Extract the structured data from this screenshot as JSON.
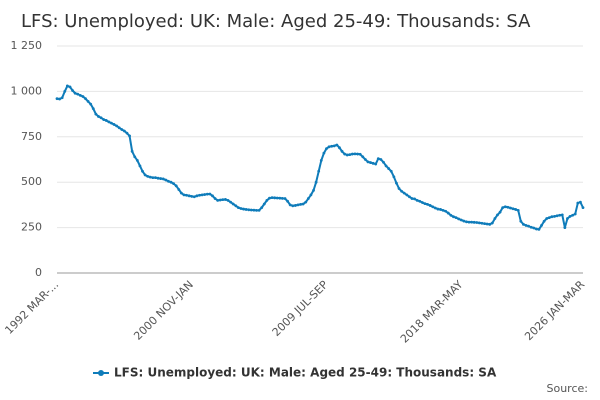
{
  "chart_data": {
    "type": "line",
    "title": "LFS: Unemployed: UK: Male: Aged 25-49: Thousands: SA",
    "categories": [
      "1992 MAR-...",
      null,
      null,
      null,
      null,
      null,
      null,
      null,
      null,
      null,
      null,
      null,
      null,
      null,
      null,
      null,
      null,
      null,
      null,
      null,
      null,
      null,
      null,
      null,
      null,
      null,
      null,
      null,
      null,
      null,
      null,
      null,
      null,
      null,
      null,
      null,
      null,
      null,
      null,
      null,
      null,
      null,
      null,
      null,
      null,
      null,
      null,
      null,
      null,
      null,
      null,
      null,
      "2000 NOV-JAN",
      null,
      null,
      null,
      null,
      null,
      null,
      null,
      null,
      null,
      null,
      null,
      null,
      null,
      null,
      null,
      null,
      null,
      null,
      null,
      null,
      null,
      null,
      null,
      null,
      null,
      null,
      null,
      null,
      null,
      null,
      null,
      null,
      null,
      null,
      null,
      null,
      null,
      null,
      null,
      null,
      null,
      null,
      null,
      null,
      null,
      null,
      null,
      null,
      null,
      null,
      null,
      "2009 JUL-SEP",
      null,
      null,
      null,
      null,
      null,
      null,
      null,
      null,
      null,
      null,
      null,
      null,
      null,
      null,
      null,
      null,
      null,
      null,
      null,
      null,
      null,
      null,
      null,
      null,
      null,
      null,
      null,
      null,
      null,
      null,
      null,
      null,
      null,
      null,
      null,
      null,
      null,
      null,
      null,
      null,
      null,
      null,
      null,
      null,
      null,
      null,
      null,
      null,
      null,
      null,
      null,
      "2018 MAR-MAY",
      null,
      null,
      null,
      null,
      null,
      null,
      null,
      null,
      null,
      null,
      null,
      null,
      null,
      null,
      null,
      null,
      null,
      null,
      null,
      null,
      null,
      null,
      null,
      null,
      null,
      null,
      null,
      null,
      null,
      null,
      null,
      null,
      null,
      null,
      null,
      null,
      null,
      null,
      null,
      null,
      null,
      null,
      null,
      null,
      null,
      null,
      "2026 JAN-MAR"
    ],
    "series": [
      {
        "name": "LFS: Unemployed: UK: Male: Aged 25-49: Thousands: SA",
        "color": "#0f7cba",
        "values": [
          960,
          958,
          965,
          1000,
          1030,
          1025,
          1005,
          990,
          985,
          978,
          972,
          960,
          945,
          930,
          905,
          875,
          862,
          855,
          845,
          840,
          832,
          825,
          818,
          810,
          800,
          790,
          782,
          770,
          755,
          670,
          640,
          620,
          590,
          560,
          540,
          532,
          528,
          525,
          525,
          522,
          520,
          518,
          512,
          505,
          500,
          492,
          480,
          460,
          440,
          430,
          428,
          425,
          422,
          420,
          425,
          428,
          430,
          432,
          434,
          435,
          425,
          410,
          400,
          402,
          404,
          405,
          400,
          390,
          380,
          370,
          360,
          355,
          352,
          350,
          348,
          347,
          346,
          345,
          345,
          360,
          380,
          400,
          412,
          415,
          414,
          413,
          412,
          411,
          410,
          395,
          375,
          370,
          372,
          375,
          378,
          380,
          390,
          410,
          430,
          455,
          500,
          560,
          620,
          660,
          685,
          695,
          698,
          700,
          705,
          690,
          670,
          655,
          650,
          652,
          655,
          656,
          655,
          654,
          640,
          625,
          612,
          608,
          604,
          600,
          630,
          625,
          610,
          590,
          575,
          560,
          530,
          495,
          465,
          450,
          440,
          430,
          420,
          410,
          408,
          400,
          395,
          388,
          382,
          378,
          372,
          365,
          358,
          352,
          350,
          345,
          340,
          330,
          318,
          310,
          305,
          298,
          292,
          286,
          282,
          280,
          280,
          279,
          278,
          276,
          274,
          272,
          270,
          268,
          275,
          300,
          320,
          335,
          360,
          365,
          362,
          358,
          354,
          350,
          345,
          285,
          268,
          262,
          258,
          252,
          248,
          242,
          240,
          262,
          285,
          300,
          305,
          310,
          312,
          315,
          318,
          320,
          250,
          300,
          312,
          318,
          325,
          385,
          390,
          360
        ]
      }
    ],
    "ylim": [
      0,
      1250
    ],
    "yticks": [
      0,
      250,
      500,
      750,
      {
        "value": 1000,
        "label": "1 000"
      },
      {
        "value": 1250,
        "label": "1 250"
      }
    ],
    "grid": true,
    "source": "Source:"
  }
}
